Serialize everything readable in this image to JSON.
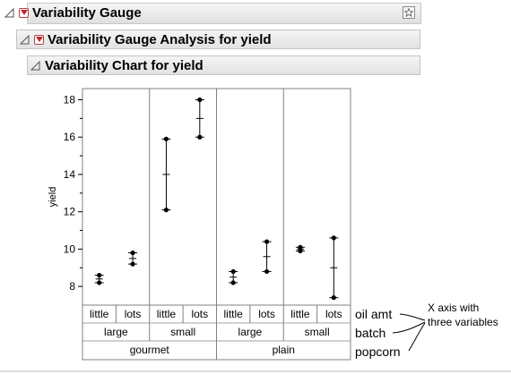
{
  "outline": {
    "level1_title": "Variability Gauge",
    "level2_title": "Variability Gauge Analysis for yield",
    "level3_title": "Variability Chart for yield"
  },
  "chart_data": {
    "type": "variability",
    "ylabel": "yield",
    "ylim": [
      7,
      18.6
    ],
    "y_ticks": [
      8,
      10,
      12,
      14,
      16,
      18
    ],
    "groups_level1": [
      "gourmet",
      "plain"
    ],
    "groups_level2": [
      "large",
      "small",
      "large",
      "small"
    ],
    "groups_level3": [
      "little",
      "lots",
      "little",
      "lots",
      "little",
      "lots",
      "little",
      "lots"
    ],
    "cells": [
      {
        "popcorn": "gourmet",
        "batch": "large",
        "oil_amt": "little",
        "min": 8.2,
        "max": 8.6,
        "mean": 8.4,
        "points": [
          8.2,
          8.6
        ]
      },
      {
        "popcorn": "gourmet",
        "batch": "large",
        "oil_amt": "lots",
        "min": 9.2,
        "max": 9.8,
        "mean": 9.5,
        "points": [
          9.2,
          9.8
        ]
      },
      {
        "popcorn": "gourmet",
        "batch": "small",
        "oil_amt": "little",
        "min": 12.1,
        "max": 15.9,
        "mean": 14.0,
        "points": [
          12.1,
          15.9
        ]
      },
      {
        "popcorn": "gourmet",
        "batch": "small",
        "oil_amt": "lots",
        "min": 16.0,
        "max": 18.0,
        "mean": 17.0,
        "points": [
          16.0,
          18.0
        ]
      },
      {
        "popcorn": "plain",
        "batch": "large",
        "oil_amt": "little",
        "min": 8.2,
        "max": 8.8,
        "mean": 8.5,
        "points": [
          8.2,
          8.8
        ]
      },
      {
        "popcorn": "plain",
        "batch": "large",
        "oil_amt": "lots",
        "min": 8.8,
        "max": 10.4,
        "mean": 9.6,
        "points": [
          8.8,
          10.4
        ]
      },
      {
        "popcorn": "plain",
        "batch": "small",
        "oil_amt": "little",
        "min": 9.9,
        "max": 10.1,
        "mean": 10.0,
        "points": [
          9.9,
          10.1
        ]
      },
      {
        "popcorn": "plain",
        "batch": "small",
        "oil_amt": "lots",
        "min": 7.4,
        "max": 10.6,
        "mean": 9.0,
        "points": [
          7.4,
          10.6
        ]
      }
    ]
  },
  "annotations": {
    "var_labels": [
      "oil amt",
      "batch",
      "popcorn"
    ],
    "callout_line1": "X axis with",
    "callout_line2": "three variables"
  },
  "colors": {
    "hotspot_red": "#c0282d",
    "frame": "#808080",
    "header_bg": "#e6e6e6"
  }
}
